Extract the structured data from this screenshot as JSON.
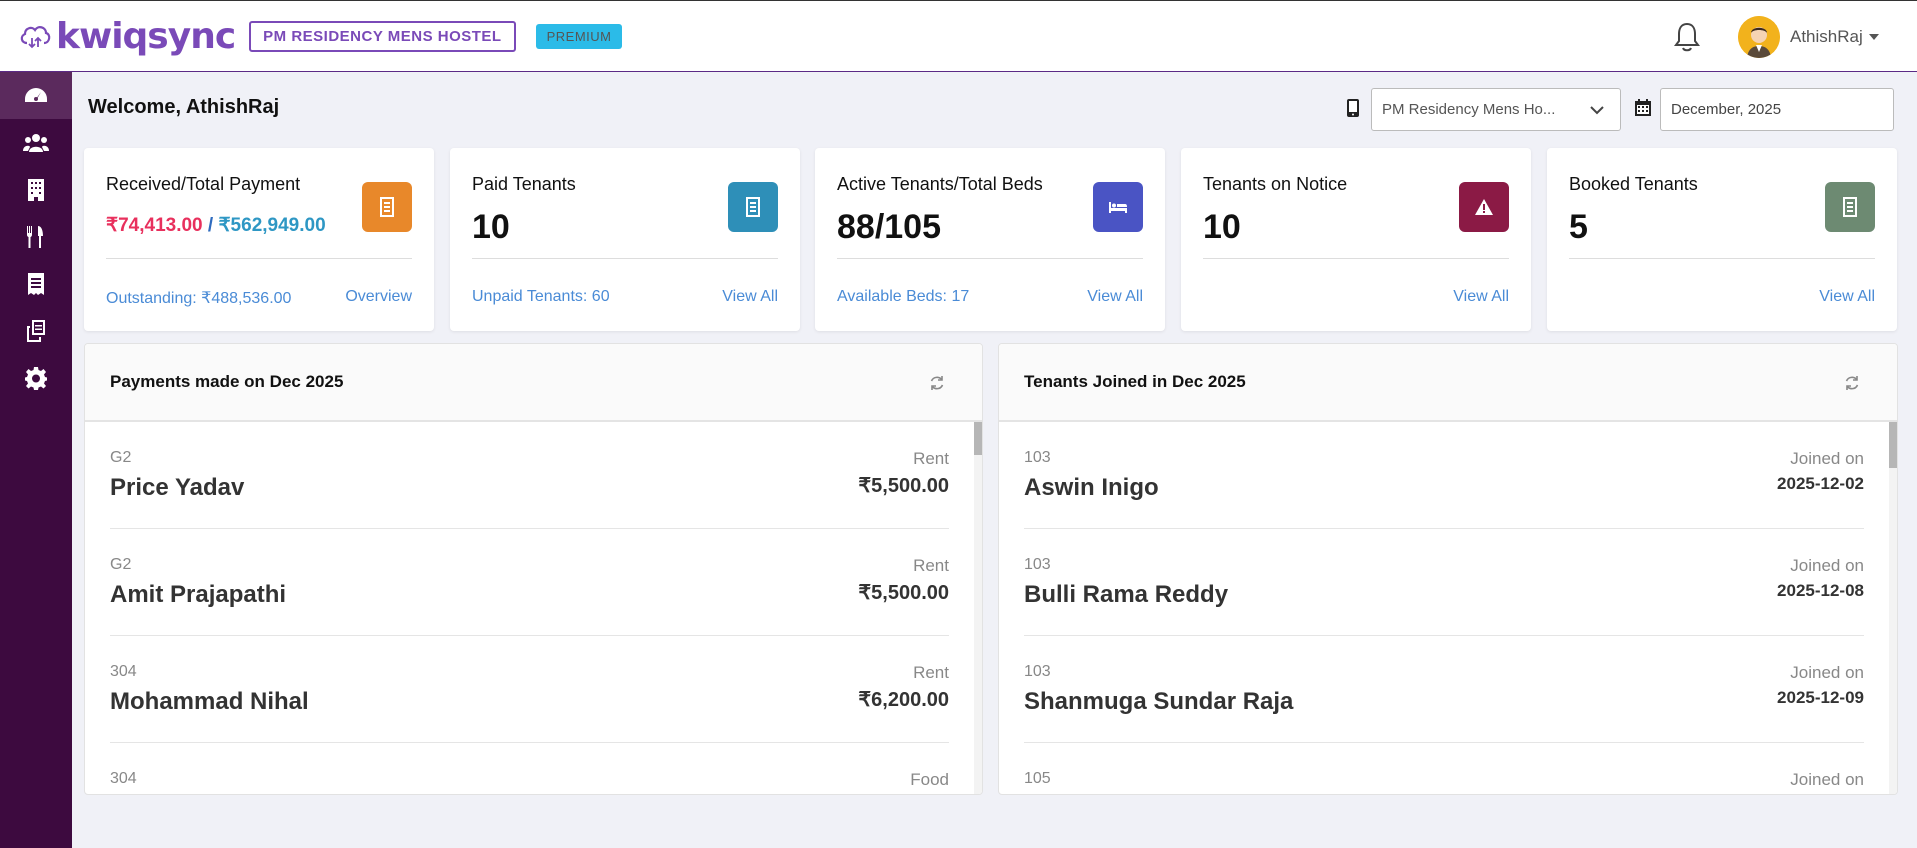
{
  "header": {
    "brand": "kwiqsync",
    "hostel_badge": "PM RESIDENCY MENS HOSTEL",
    "plan_badge": "PREMIUM",
    "user_name": "AthishRaj"
  },
  "sidebar": {
    "items": [
      {
        "icon": "dashboard-icon",
        "active": true
      },
      {
        "icon": "users-icon",
        "active": false
      },
      {
        "icon": "building-icon",
        "active": false
      },
      {
        "icon": "food-icon",
        "active": false
      },
      {
        "icon": "receipt-icon",
        "active": false
      },
      {
        "icon": "documents-icon",
        "active": false
      },
      {
        "icon": "settings-icon",
        "active": false
      }
    ]
  },
  "main": {
    "welcome": "Welcome, AthishRaj",
    "property_select": "PM Residency Mens Ho...",
    "month_input": "December, 2025"
  },
  "cards": [
    {
      "title": "Received/Total Payment",
      "received": "₹74,413.00",
      "separator": " / ",
      "total": "₹562,949.00",
      "footer_left": "Outstanding: ₹488,536.00",
      "footer_right": "Overview",
      "icon": "receipt-icon",
      "color": "#e8882a"
    },
    {
      "title": "Paid Tenants",
      "value": "10",
      "footer_left": "Unpaid Tenants: 60",
      "footer_right": "View All",
      "icon": "receipt-icon",
      "color": "#2e8fb8"
    },
    {
      "title": "Active Tenants/Total Beds",
      "value": "88/105",
      "footer_left": "Available Beds: 17",
      "footer_right": "View All",
      "icon": "bed-icon",
      "color": "#4a54c4"
    },
    {
      "title": "Tenants on Notice",
      "value": "10",
      "footer_left": "",
      "footer_right": "View All",
      "icon": "warning-icon",
      "color": "#8b1a45"
    },
    {
      "title": "Booked Tenants",
      "value": "5",
      "footer_left": "",
      "footer_right": "View All",
      "icon": "receipt-icon",
      "color": "#6d8a72"
    }
  ],
  "payments_panel": {
    "title": "Payments made on Dec 2025",
    "rows": [
      {
        "room": "G2",
        "name": "Price Yadav",
        "type": "Rent",
        "amount": "₹5,500.00"
      },
      {
        "room": "G2",
        "name": "Amit Prajapathi",
        "type": "Rent",
        "amount": "₹5,500.00"
      },
      {
        "room": "304",
        "name": "Mohammad Nihal",
        "type": "Rent",
        "amount": "₹6,200.00"
      },
      {
        "room": "304",
        "name": "",
        "type": "Food",
        "amount": ""
      }
    ]
  },
  "joined_panel": {
    "title": "Tenants Joined in Dec 2025",
    "rows": [
      {
        "room": "103",
        "name": "Aswin Inigo",
        "label": "Joined on",
        "date": "2025-12-02"
      },
      {
        "room": "103",
        "name": "Bulli Rama Reddy",
        "label": "Joined on",
        "date": "2025-12-08"
      },
      {
        "room": "103",
        "name": "Shanmuga Sundar Raja",
        "label": "Joined on",
        "date": "2025-12-09"
      },
      {
        "room": "105",
        "name": "",
        "label": "Joined on",
        "date": ""
      }
    ]
  }
}
